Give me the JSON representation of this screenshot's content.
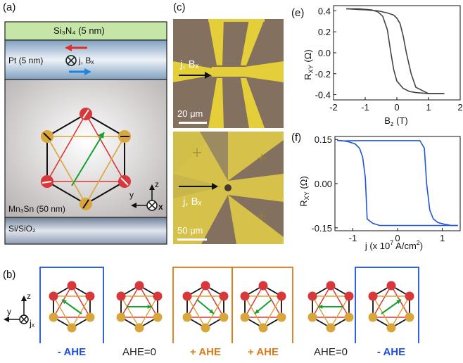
{
  "panels": {
    "a": "(a)",
    "b": "(b)",
    "c": "(c)",
    "e": "(e)",
    "f": "(f)"
  },
  "panel_a": {
    "si3n4": "Si₃N₄ (5 nm)",
    "pt": "Pt (5 nm)",
    "current_field": "j, Bₓ",
    "mn3sn": "Mn₃Sn (50 nm)",
    "substrate": "Si/SiO₂",
    "axis_z": "z",
    "axis_y": "y",
    "axis_x": "x",
    "colors": {
      "si3n4": "#c5e6a6",
      "pt": "#bdd2e6",
      "mn3sn": "#d0d0d0",
      "substrate": "#c4cbd7",
      "red": "#d8383a",
      "gold": "#d8a63a",
      "green": "#14a12e",
      "blue": "#1b87e0"
    }
  },
  "panel_c": {
    "top_label": "j, Bₓ",
    "top_scale": "20 μm",
    "bottom_label": "j, Bₓ",
    "bottom_scale": "50 μm"
  },
  "panel_b": {
    "axis_z": "z",
    "axis_y": "y",
    "axis_j": "jₓ",
    "labels": [
      "- AHE",
      "AHE=0",
      "+ AHE",
      "+ AHE",
      "AHE=0",
      "- AHE"
    ],
    "label_colors": [
      "#1f4fe0",
      "#222222",
      "#dd7a18",
      "#dd7a18",
      "#222222",
      "#1f4fe0"
    ]
  },
  "chart_data": [
    {
      "type": "line",
      "panel": "(e)",
      "xlabel": "B_z (T)",
      "ylabel": "R_xy (Ω)",
      "xlim": [
        -2,
        2
      ],
      "ylim": [
        -0.45,
        0.45
      ],
      "xticks": [
        -2,
        -1,
        0,
        1,
        2
      ],
      "yticks": [
        0.4,
        0.2,
        0.0,
        -0.2,
        -0.4
      ],
      "series": [
        {
          "x": [
            -1.6,
            -1.2,
            -0.8,
            -0.6,
            -0.45,
            -0.3,
            -0.2,
            -0.1,
            0.0,
            0.2,
            0.4,
            0.6,
            1.0,
            1.5
          ],
          "y": [
            0.42,
            0.42,
            0.41,
            0.39,
            0.35,
            0.22,
            0.02,
            -0.16,
            -0.27,
            -0.34,
            -0.37,
            -0.38,
            -0.39,
            -0.39
          ]
        },
        {
          "x": [
            1.5,
            1.0,
            0.6,
            0.45,
            0.3,
            0.2,
            0.1,
            0.0,
            -0.1,
            -0.3,
            -0.6,
            -1.0,
            -1.6
          ],
          "y": [
            -0.39,
            -0.39,
            -0.33,
            -0.2,
            0.0,
            0.16,
            0.28,
            0.33,
            0.36,
            0.38,
            0.4,
            0.41,
            0.42
          ]
        }
      ],
      "colors": [
        "#444444"
      ]
    },
    {
      "type": "line",
      "panel": "(f)",
      "xlabel": "j (x 10⁷ A/cm²)",
      "ylabel": "R_xy (Ω)",
      "xlim": [
        -1.4,
        1.4
      ],
      "ylim": [
        -0.16,
        0.16
      ],
      "xticks": [
        -1,
        0,
        1
      ],
      "yticks": [
        0.15,
        0.0,
        -0.15
      ],
      "ytick_labels": [
        "0.15",
        "0.00",
        "-0.15"
      ],
      "series": [
        {
          "x": [
            -1.35,
            -1.2,
            -0.9,
            -0.6,
            -0.2,
            0.2,
            0.5,
            0.6,
            0.65,
            0.72,
            0.8,
            0.9,
            1.05,
            1.2,
            1.35
          ],
          "y": [
            0.147,
            0.145,
            0.146,
            0.146,
            0.146,
            0.146,
            0.146,
            0.12,
            0.0,
            -0.09,
            -0.12,
            -0.132,
            -0.138,
            -0.142,
            -0.142
          ]
        },
        {
          "x": [
            1.35,
            1.0,
            0.5,
            0.0,
            -0.4,
            -0.55,
            -0.68,
            -0.72,
            -0.78,
            -0.85,
            -0.95,
            -1.1,
            -1.2,
            -1.3,
            -1.35
          ],
          "y": [
            -0.142,
            -0.142,
            -0.142,
            -0.142,
            -0.142,
            -0.135,
            -0.12,
            0.02,
            0.09,
            0.12,
            0.135,
            0.142,
            0.145,
            0.146,
            0.147
          ]
        }
      ],
      "colors": [
        "#1f55d8"
      ]
    }
  ],
  "chart_text": {
    "e_ylabel": "R",
    "e_ysub": "XY",
    "e_yunit": " (Ω)",
    "e_xlabel": "B",
    "e_xsub": "z",
    "e_xunit": " (T)",
    "f_ylabel": "R",
    "f_ysub": "XY",
    "f_yunit": " (Ω)",
    "f_xlabel": "j (x 10",
    "f_xsup": "7",
    "f_xunit": " A/cm",
    "f_xsup2": "2",
    "f_xclose": ")"
  }
}
